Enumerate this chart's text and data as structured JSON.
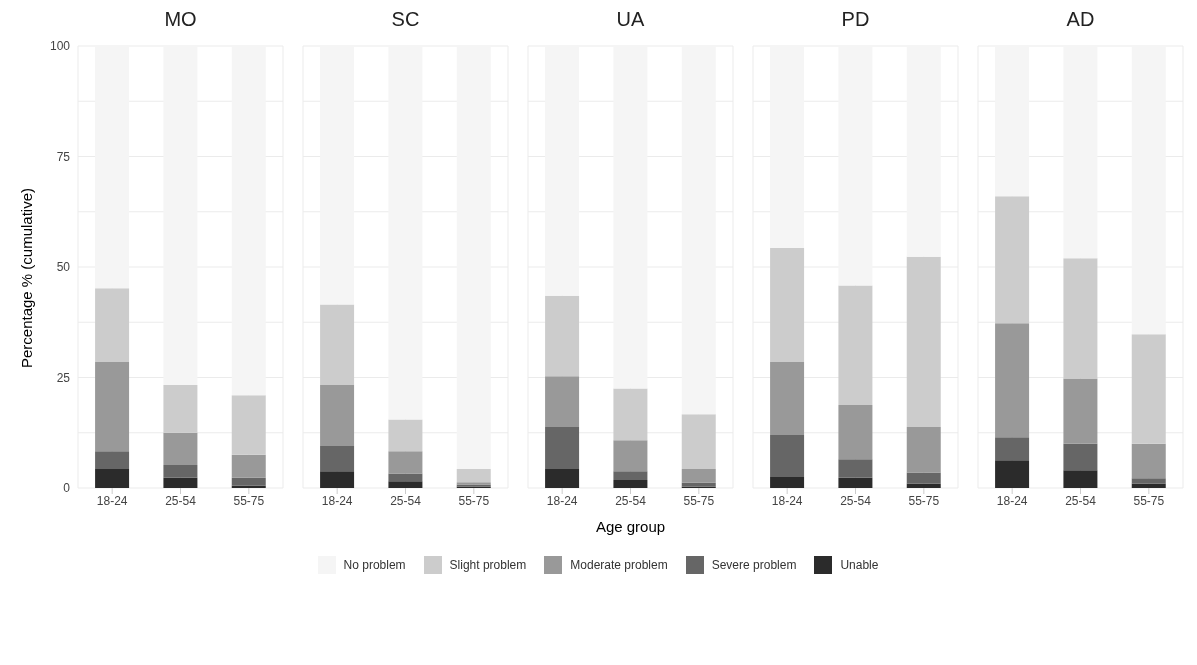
{
  "chart_data": [
    {
      "type": "bar",
      "title": "MO",
      "ylabel": "Percentage % (cumulative)",
      "categories": [
        "18-24",
        "25-54",
        "55-75"
      ],
      "stacked": true,
      "grid": true,
      "legend": "bottom",
      "ylim": [
        0,
        100
      ],
      "yticks": [
        0,
        {
          "value": 12.5,
          "label": null
        },
        25,
        {
          "value": 37.5,
          "label": null
        },
        50,
        {
          "value": 62.5,
          "label": null
        },
        75,
        {
          "value": 87.5,
          "label": null
        },
        100
      ],
      "series": [
        {
          "name": "Unable",
          "color": "#2b2b2b",
          "values": [
            4.3,
            2.3,
            0.5
          ]
        },
        {
          "name": "Severe problem",
          "color": "#666666",
          "values": [
            4.0,
            2.9,
            1.8
          ]
        },
        {
          "name": "Moderate problem",
          "color": "#999999",
          "values": [
            20.2,
            7.3,
            5.2
          ]
        },
        {
          "name": "Slight problem",
          "color": "#cccccc",
          "values": [
            16.7,
            10.8,
            13.5
          ]
        },
        {
          "name": "No problem",
          "color": "#f5f5f5",
          "values": [
            54.8,
            76.7,
            79.0
          ]
        }
      ]
    },
    {
      "type": "bar",
      "title": "SC",
      "categories": [
        "18-24",
        "25-54",
        "55-75"
      ],
      "stacked": true,
      "grid": true,
      "tick_labels": "x",
      "ylim": [
        0,
        100
      ],
      "yticks": [
        0,
        {
          "value": 12.5,
          "label": null
        },
        25,
        {
          "value": 37.5,
          "label": null
        },
        50,
        {
          "value": 62.5,
          "label": null
        },
        75,
        {
          "value": 87.5,
          "label": null
        },
        100
      ],
      "series": [
        {
          "color": "#2b2b2b",
          "values": [
            3.8,
            1.5,
            0.3
          ]
        },
        {
          "color": "#666666",
          "values": [
            5.7,
            1.8,
            0.5
          ]
        },
        {
          "color": "#999999",
          "values": [
            13.8,
            5.0,
            0.5
          ]
        },
        {
          "color": "#cccccc",
          "values": [
            18.2,
            7.2,
            3.0
          ]
        },
        {
          "color": "#f5f5f5",
          "values": [
            58.5,
            84.5,
            95.7
          ]
        }
      ]
    },
    {
      "type": "bar",
      "title": "UA",
      "xlabel": "Age group",
      "categories": [
        "18-24",
        "25-54",
        "55-75"
      ],
      "stacked": true,
      "grid": true,
      "tick_labels": "x",
      "ylim": [
        0,
        100
      ],
      "yticks": [
        0,
        {
          "value": 12.5,
          "label": null
        },
        25,
        {
          "value": 37.5,
          "label": null
        },
        50,
        {
          "value": 62.5,
          "label": null
        },
        75,
        {
          "value": 87.5,
          "label": null
        },
        100
      ],
      "series": [
        {
          "color": "#2b2b2b",
          "values": [
            4.3,
            1.8,
            0.3
          ]
        },
        {
          "color": "#666666",
          "values": [
            9.5,
            2.0,
            0.9
          ]
        },
        {
          "color": "#999999",
          "values": [
            11.5,
            7.0,
            3.1
          ]
        },
        {
          "color": "#cccccc",
          "values": [
            18.2,
            11.7,
            12.4
          ]
        },
        {
          "color": "#f5f5f5",
          "values": [
            56.5,
            77.5,
            83.3
          ]
        }
      ]
    },
    {
      "type": "bar",
      "title": "PD",
      "categories": [
        "18-24",
        "25-54",
        "55-75"
      ],
      "stacked": true,
      "grid": true,
      "tick_labels": "x",
      "ylim": [
        0,
        100
      ],
      "yticks": [
        0,
        {
          "value": 12.5,
          "label": null
        },
        25,
        {
          "value": 37.5,
          "label": null
        },
        50,
        {
          "value": 62.5,
          "label": null
        },
        75,
        {
          "value": 87.5,
          "label": null
        },
        100
      ],
      "series": [
        {
          "color": "#2b2b2b",
          "values": [
            2.5,
            2.3,
            1.0
          ]
        },
        {
          "color": "#666666",
          "values": [
            9.5,
            4.2,
            2.5
          ]
        },
        {
          "color": "#999999",
          "values": [
            16.5,
            12.3,
            10.3
          ]
        },
        {
          "color": "#cccccc",
          "values": [
            25.8,
            27.0,
            38.5
          ]
        },
        {
          "color": "#f5f5f5",
          "values": [
            45.7,
            54.2,
            47.7
          ]
        }
      ]
    },
    {
      "type": "bar",
      "title": "AD",
      "categories": [
        "18-24",
        "25-54",
        "55-75"
      ],
      "stacked": true,
      "grid": true,
      "tick_labels": "x",
      "ylim": [
        0,
        100
      ],
      "yticks": [
        0,
        {
          "value": 12.5,
          "label": null
        },
        25,
        {
          "value": 37.5,
          "label": null
        },
        50,
        {
          "value": 62.5,
          "label": null
        },
        75,
        {
          "value": 87.5,
          "label": null
        },
        100
      ],
      "series": [
        {
          "color": "#2b2b2b",
          "values": [
            6.3,
            4.0,
            1.0
          ]
        },
        {
          "color": "#666666",
          "values": [
            5.2,
            6.0,
            1.2
          ]
        },
        {
          "color": "#999999",
          "values": [
            25.8,
            14.8,
            7.8
          ]
        },
        {
          "color": "#cccccc",
          "values": [
            28.7,
            27.2,
            24.8
          ]
        },
        {
          "color": "#f5f5f5",
          "values": [
            34.0,
            48.0,
            65.2
          ]
        }
      ]
    }
  ]
}
